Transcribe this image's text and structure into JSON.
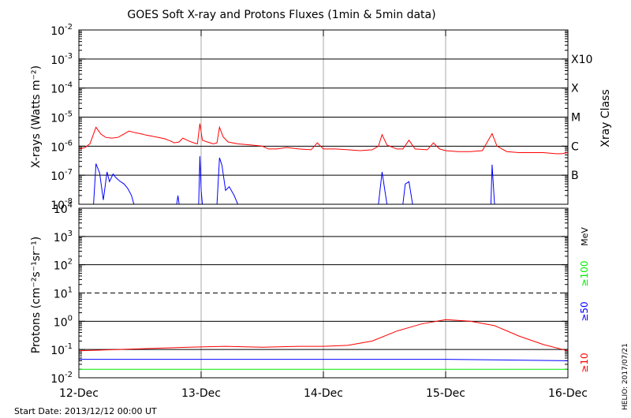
{
  "title": "GOES Soft X-ray and Protons Fluxes   (1min & 5min data)",
  "start_date": "Start Date: 2013/12/12 00:00 UT",
  "side_label": "HELIO: 2017/07/21",
  "colors": {
    "red": "#ff0000",
    "blue": "#0000ff",
    "green": "#00ee00",
    "gridGray": "#aaaaaa",
    "axis": "#000000"
  },
  "chart_data": [
    {
      "type": "line",
      "panel": "xray",
      "ylabel": "X-rays (Watts m⁻²)",
      "yscale": "log",
      "ylim": [
        1e-08,
        0.01
      ],
      "y_ticks": [
        {
          "base": "10",
          "exp": "-8"
        },
        {
          "base": "10",
          "exp": "-7"
        },
        {
          "base": "10",
          "exp": "-6"
        },
        {
          "base": "10",
          "exp": "-5"
        },
        {
          "base": "10",
          "exp": "-4"
        },
        {
          "base": "10",
          "exp": "-3"
        },
        {
          "base": "10",
          "exp": "-2"
        }
      ],
      "right_axis_label": "Xray Class",
      "flare_classes": [
        {
          "label": "B",
          "value": 1e-07
        },
        {
          "label": "C",
          "value": 1e-06
        },
        {
          "label": "M",
          "value": 1e-05
        },
        {
          "label": "X",
          "value": 0.0001
        },
        {
          "label": "X10",
          "value": 0.001
        }
      ],
      "x_range": [
        "2013-12-12",
        "2013-12-16"
      ],
      "series": [
        {
          "color": "#ff0000",
          "points": [
            [
              0.0,
              8e-07
            ],
            [
              0.05,
              9e-07
            ],
            [
              0.09,
              1.2e-06
            ],
            [
              0.14,
              4.5e-06
            ],
            [
              0.18,
              2.6e-06
            ],
            [
              0.22,
              2e-06
            ],
            [
              0.27,
              1.9e-06
            ],
            [
              0.32,
              2e-06
            ],
            [
              0.36,
              2.5e-06
            ],
            [
              0.41,
              3.3e-06
            ],
            [
              0.46,
              2.9e-06
            ],
            [
              0.5,
              2.7e-06
            ],
            [
              0.55,
              2.4e-06
            ],
            [
              0.6,
              2.2e-06
            ],
            [
              0.65,
              2e-06
            ],
            [
              0.7,
              1.8e-06
            ],
            [
              0.75,
              1.5e-06
            ],
            [
              0.78,
              1.3e-06
            ],
            [
              0.82,
              1.4e-06
            ],
            [
              0.85,
              1.9e-06
            ],
            [
              0.9,
              1.5e-06
            ],
            [
              0.94,
              1.3e-06
            ],
            [
              0.97,
              1.2e-06
            ],
            [
              0.99,
              6e-06
            ],
            [
              1.01,
              1.6e-06
            ],
            [
              1.05,
              1.4e-06
            ],
            [
              1.1,
              1.2e-06
            ],
            [
              1.13,
              1.3e-06
            ],
            [
              1.15,
              4.5e-06
            ],
            [
              1.18,
              2.1e-06
            ],
            [
              1.22,
              1.4e-06
            ],
            [
              1.3,
              1.2e-06
            ],
            [
              1.4,
              1.1e-06
            ],
            [
              1.5,
              1e-06
            ],
            [
              1.55,
              8e-07
            ],
            [
              1.62,
              8e-07
            ],
            [
              1.7,
              9e-07
            ],
            [
              1.8,
              8e-07
            ],
            [
              1.9,
              7.5e-07
            ],
            [
              1.95,
              1.3e-06
            ],
            [
              2.0,
              8e-07
            ],
            [
              2.1,
              8e-07
            ],
            [
              2.2,
              7.5e-07
            ],
            [
              2.3,
              7e-07
            ],
            [
              2.4,
              7.5e-07
            ],
            [
              2.45,
              1e-06
            ],
            [
              2.48,
              2.5e-06
            ],
            [
              2.52,
              1.1e-06
            ],
            [
              2.6,
              8e-07
            ],
            [
              2.65,
              8e-07
            ],
            [
              2.7,
              1.6e-06
            ],
            [
              2.75,
              8e-07
            ],
            [
              2.85,
              7.5e-07
            ],
            [
              2.9,
              1.3e-06
            ],
            [
              2.95,
              8e-07
            ],
            [
              3.0,
              7e-07
            ],
            [
              3.1,
              6.5e-07
            ],
            [
              3.2,
              6.5e-07
            ],
            [
              3.3,
              7e-07
            ],
            [
              3.38,
              2.7e-06
            ],
            [
              3.42,
              1e-06
            ],
            [
              3.5,
              6.5e-07
            ],
            [
              3.6,
              6e-07
            ],
            [
              3.7,
              6e-07
            ],
            [
              3.8,
              6e-07
            ],
            [
              3.9,
              5.5e-07
            ],
            [
              3.95,
              5.5e-07
            ],
            [
              4.0,
              6e-07
            ]
          ]
        },
        {
          "color": "#0000ff",
          "points": [
            [
              0.12,
              1e-08
            ],
            [
              0.14,
              2.5e-07
            ],
            [
              0.17,
              1.2e-07
            ],
            [
              0.2,
              1.4e-08
            ],
            [
              0.23,
              1.3e-07
            ],
            [
              0.25,
              6e-08
            ],
            [
              0.28,
              1.1e-07
            ],
            [
              0.3,
              8.5e-08
            ],
            [
              0.33,
              6.5e-08
            ],
            [
              0.37,
              5e-08
            ],
            [
              0.4,
              3.5e-08
            ],
            [
              0.43,
              2e-08
            ],
            [
              0.45,
              1e-08
            ],
            [
              0.8,
              1e-08
            ],
            [
              0.81,
              2e-08
            ],
            [
              0.82,
              1e-08
            ],
            [
              0.98,
              1e-08
            ],
            [
              0.99,
              4.5e-07
            ],
            [
              1.0,
              3e-08
            ],
            [
              1.01,
              1e-08
            ],
            [
              1.13,
              1e-08
            ],
            [
              1.15,
              4e-07
            ],
            [
              1.17,
              2.2e-07
            ],
            [
              1.2,
              3e-08
            ],
            [
              1.23,
              4e-08
            ],
            [
              1.27,
              2e-08
            ],
            [
              1.3,
              1e-08
            ],
            [
              2.45,
              1e-08
            ],
            [
              2.48,
              1.3e-07
            ],
            [
              2.52,
              1e-08
            ],
            [
              2.65,
              1e-08
            ],
            [
              2.67,
              5e-08
            ],
            [
              2.7,
              6e-08
            ],
            [
              2.73,
              1e-08
            ],
            [
              3.37,
              1e-08
            ],
            [
              3.38,
              2.3e-07
            ],
            [
              3.4,
              1e-08
            ]
          ]
        }
      ]
    },
    {
      "type": "line",
      "panel": "protons",
      "ylabel": "Protons (cm⁻²s⁻¹sr⁻¹)",
      "yscale": "log",
      "ylim": [
        0.01,
        10000
      ],
      "y_ticks": [
        {
          "base": "10",
          "exp": "-2"
        },
        {
          "base": "10",
          "exp": "-1"
        },
        {
          "base": "10",
          "exp": "0"
        },
        {
          "base": "10",
          "exp": "1"
        },
        {
          "base": "10",
          "exp": "2"
        },
        {
          "base": "10",
          "exp": "3"
        },
        {
          "base": "10",
          "exp": "4"
        }
      ],
      "dashed_threshold": 10,
      "unit_label": "MeV",
      "x_categories": [
        "12-Dec",
        "13-Dec",
        "14-Dec",
        "15-Dec",
        "16-Dec"
      ],
      "series": [
        {
          "name": "≥10",
          "color": "#ff0000",
          "points": [
            [
              0.0,
              0.09
            ],
            [
              0.3,
              0.1
            ],
            [
              0.6,
              0.11
            ],
            [
              0.9,
              0.12
            ],
            [
              1.2,
              0.13
            ],
            [
              1.5,
              0.12
            ],
            [
              1.8,
              0.13
            ],
            [
              2.0,
              0.13
            ],
            [
              2.2,
              0.14
            ],
            [
              2.4,
              0.2
            ],
            [
              2.6,
              0.45
            ],
            [
              2.8,
              0.8
            ],
            [
              3.0,
              1.15
            ],
            [
              3.2,
              1.0
            ],
            [
              3.4,
              0.7
            ],
            [
              3.6,
              0.3
            ],
            [
              3.8,
              0.15
            ],
            [
              4.0,
              0.09
            ]
          ]
        },
        {
          "name": "≥50",
          "color": "#0000ff",
          "points": [
            [
              0.0,
              0.045
            ],
            [
              1.0,
              0.045
            ],
            [
              2.0,
              0.045
            ],
            [
              3.0,
              0.045
            ],
            [
              4.0,
              0.04
            ]
          ]
        },
        {
          "name": "≥100",
          "color": "#00ee00",
          "points": [
            [
              0.0,
              0.02
            ],
            [
              1.0,
              0.02
            ],
            [
              2.0,
              0.02
            ],
            [
              3.0,
              0.02
            ],
            [
              4.0,
              0.02
            ]
          ]
        }
      ]
    }
  ]
}
